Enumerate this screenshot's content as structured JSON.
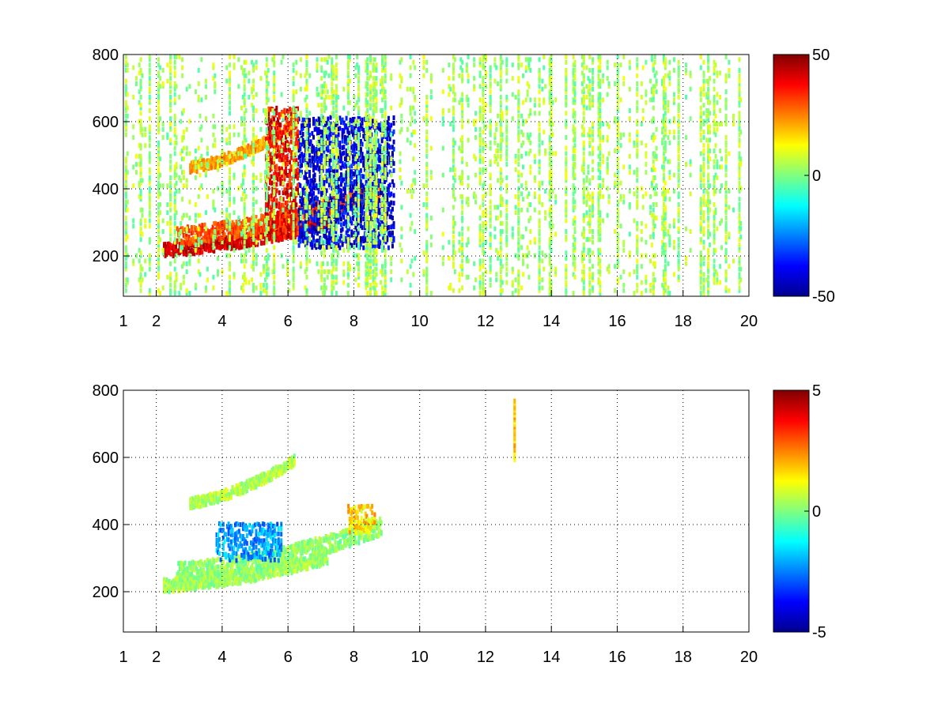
{
  "figure": {
    "background": "#ffffff",
    "colormap": "jet",
    "grid_style": "dotted",
    "grid": true
  },
  "chart_data": [
    {
      "type": "heatmap",
      "title": "",
      "xlabel": "",
      "ylabel": "",
      "xlim": [
        1,
        20
      ],
      "ylim": [
        80,
        800
      ],
      "x_ticks": [
        1,
        2,
        4,
        6,
        8,
        10,
        12,
        14,
        16,
        18,
        20
      ],
      "x_tick_labels": [
        "1",
        "2",
        "4",
        "6",
        "8",
        "10",
        "12",
        "14",
        "16",
        "18",
        "20"
      ],
      "y_ticks": [
        200,
        400,
        600,
        800
      ],
      "y_tick_labels": [
        "200",
        "400",
        "600",
        "800"
      ],
      "colorbar": {
        "clim": [
          -50,
          50
        ],
        "ticks": [
          -50,
          0,
          50
        ],
        "tick_labels": [
          "-50",
          "0",
          "50"
        ]
      },
      "features": [
        {
          "kind": "curve",
          "x_start": 2.2,
          "x_end": 7.2,
          "y_start": 225,
          "y_end": 310,
          "value": 42,
          "thickness": 18
        },
        {
          "kind": "curve",
          "x_start": 2.6,
          "x_end": 8.8,
          "y_start": 265,
          "y_end": 400,
          "value": 30,
          "thickness": 24
        },
        {
          "kind": "curve",
          "x_start": 3.0,
          "x_end": 6.2,
          "y_start": 470,
          "y_end": 600,
          "value": 22,
          "thickness": 14
        },
        {
          "kind": "region",
          "x_start": 6.3,
          "x_end": 9.2,
          "y_low": 230,
          "y_high": 620,
          "value": -40
        },
        {
          "kind": "region",
          "x_start": 5.3,
          "x_end": 6.3,
          "y_low": 260,
          "y_high": 650,
          "value": 38
        },
        {
          "kind": "noise",
          "x_start": 1,
          "x_end": 20,
          "y_low": 80,
          "y_high": 800,
          "value_range": [
            -5,
            12
          ]
        }
      ],
      "value_range": [
        -50,
        50
      ]
    },
    {
      "type": "heatmap",
      "title": "",
      "xlabel": "",
      "ylabel": "",
      "xlim": [
        1,
        20
      ],
      "ylim": [
        80,
        800
      ],
      "x_ticks": [
        1,
        2,
        4,
        6,
        8,
        10,
        12,
        14,
        16,
        18,
        20
      ],
      "x_tick_labels": [
        "1",
        "2",
        "4",
        "6",
        "8",
        "10",
        "12",
        "14",
        "16",
        "18",
        "20"
      ],
      "y_ticks": [
        200,
        400,
        600,
        800
      ],
      "y_tick_labels": [
        "200",
        "400",
        "600",
        "800"
      ],
      "colorbar": {
        "clim": [
          -5,
          5
        ],
        "ticks": [
          -5,
          0,
          5
        ],
        "tick_labels": [
          "-5",
          "0",
          "5"
        ]
      },
      "features": [
        {
          "kind": "curve",
          "x_start": 2.2,
          "x_end": 7.2,
          "y_start": 225,
          "y_end": 310,
          "value": 0.3,
          "thickness": 18
        },
        {
          "kind": "curve",
          "x_start": 2.6,
          "x_end": 8.8,
          "y_start": 265,
          "y_end": 400,
          "value": 0.2,
          "thickness": 24
        },
        {
          "kind": "curve",
          "x_start": 3.0,
          "x_end": 6.2,
          "y_start": 470,
          "y_end": 600,
          "value": 0.5,
          "thickness": 14
        },
        {
          "kind": "region",
          "x_start": 3.8,
          "x_end": 5.8,
          "y_low": 300,
          "y_high": 400,
          "value": -2.2
        },
        {
          "kind": "region",
          "x_start": 7.8,
          "x_end": 8.6,
          "y_low": 380,
          "y_high": 460,
          "value": 1.6
        },
        {
          "kind": "column",
          "x": 12.85,
          "y_low": 600,
          "y_high": 780,
          "value": 1.8
        }
      ],
      "value_range": [
        -5,
        5
      ]
    }
  ]
}
